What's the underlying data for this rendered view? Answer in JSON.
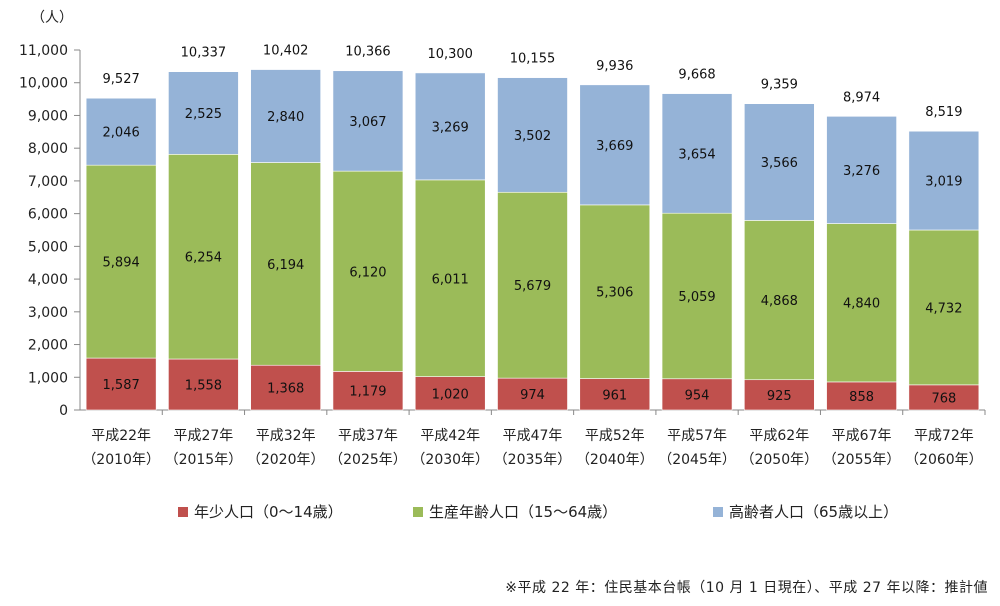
{
  "chart_data": {
    "type": "bar",
    "stacked": true,
    "unit_label": "（人）",
    "ylim": [
      0,
      11000
    ],
    "yticks": [
      "0",
      "1,000",
      "2,000",
      "3,000",
      "4,000",
      "5,000",
      "6,000",
      "7,000",
      "8,000",
      "9,000",
      "10,000",
      "11,000"
    ],
    "ytick_values": [
      0,
      1000,
      2000,
      3000,
      4000,
      5000,
      6000,
      7000,
      8000,
      9000,
      10000,
      11000
    ],
    "grid": false,
    "legend_position": "bottom",
    "categories": [
      {
        "line1": "平成22年",
        "line2": "（2010年）"
      },
      {
        "line1": "平成27年",
        "line2": "（2015年）"
      },
      {
        "line1": "平成32年",
        "line2": "（2020年）"
      },
      {
        "line1": "平成37年",
        "line2": "（2025年）"
      },
      {
        "line1": "平成42年",
        "line2": "（2030年）"
      },
      {
        "line1": "平成47年",
        "line2": "（2035年）"
      },
      {
        "line1": "平成52年",
        "line2": "（2040年）"
      },
      {
        "line1": "平成57年",
        "line2": "（2045年）"
      },
      {
        "line1": "平成62年",
        "line2": "（2050年）"
      },
      {
        "line1": "平成67年",
        "line2": "（2055年）"
      },
      {
        "line1": "平成72年",
        "line2": "（2060年）"
      }
    ],
    "series": [
      {
        "name": "年少人口（0～14歳）",
        "color": "#c0504d",
        "values": [
          1587,
          1558,
          1368,
          1179,
          1020,
          974,
          961,
          954,
          925,
          858,
          768
        ],
        "labels": [
          "1,587",
          "1,558",
          "1,368",
          "1,179",
          "1,020",
          "974",
          "961",
          "954",
          "925",
          "858",
          "768"
        ]
      },
      {
        "name": "生産年齢人口（15～64歳）",
        "color": "#9bbb59",
        "values": [
          5894,
          6254,
          6194,
          6120,
          6011,
          5679,
          5306,
          5059,
          4868,
          4840,
          4732
        ],
        "labels": [
          "5,894",
          "6,254",
          "6,194",
          "6,120",
          "6,011",
          "5,679",
          "5,306",
          "5,059",
          "4,868",
          "4,840",
          "4,732"
        ]
      },
      {
        "name": "高齢者人口（65歳以上）",
        "color": "#95b3d7",
        "values": [
          2046,
          2525,
          2840,
          3067,
          3269,
          3502,
          3669,
          3654,
          3566,
          3276,
          3019
        ],
        "labels": [
          "2,046",
          "2,525",
          "2,840",
          "3,067",
          "3,269",
          "3,502",
          "3,669",
          "3,654",
          "3,566",
          "3,276",
          "3,019"
        ]
      }
    ],
    "totals": [
      9527,
      10337,
      10402,
      10366,
      10300,
      10155,
      9936,
      9668,
      9359,
      8974,
      8519
    ],
    "total_labels": [
      "9,527",
      "10,337",
      "10,402",
      "10,366",
      "10,300",
      "10,155",
      "9,936",
      "9,668",
      "9,359",
      "8,974",
      "8,519"
    ]
  },
  "footnote": "※平成 22 年：住民基本台帳（10 月 1 日現在）、平成 27 年以降：推計値"
}
